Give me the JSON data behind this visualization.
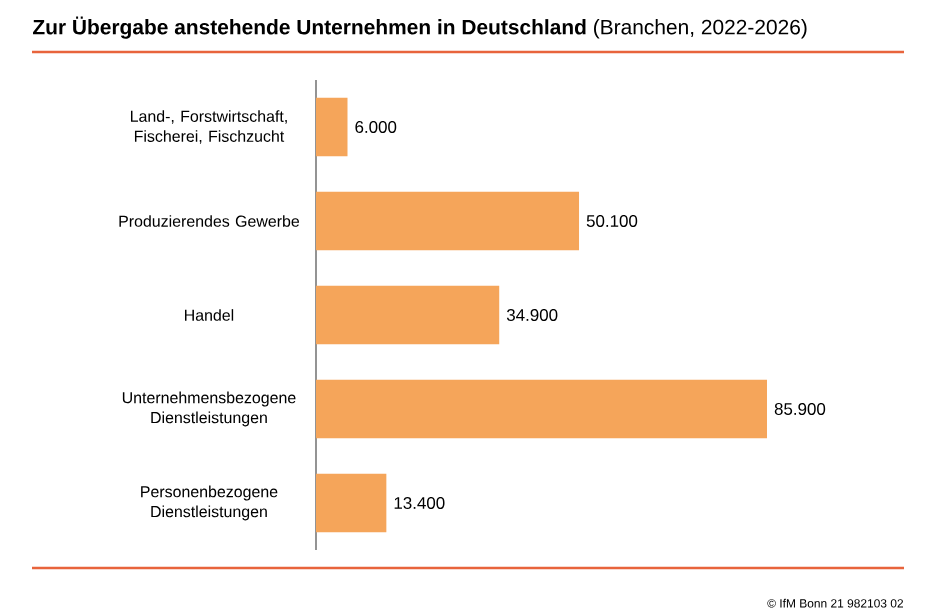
{
  "chart_data": {
    "type": "bar",
    "orientation": "horizontal",
    "title": "**Zur Übergabe anstehende Unternehmen in Deutschland** (Branchen, 2022-2026)",
    "categories": [
      "Land-, Forstwirtschaft, Fischerei, Fischzucht",
      "Produzierendes Gewerbe",
      "Handel",
      "Unternehmensbezogene Dienstleistungen",
      "Personenbezogene Dienstleistungen"
    ],
    "values": [
      6000,
      50100,
      34900,
      85900,
      13400
    ],
    "value_labels": [
      "6.000",
      "50.100",
      "34.900",
      "85.900",
      "13.400"
    ],
    "color": "#f5a55a",
    "annotations": [
      "© IfM Bonn 21 982103 02"
    ]
  }
}
